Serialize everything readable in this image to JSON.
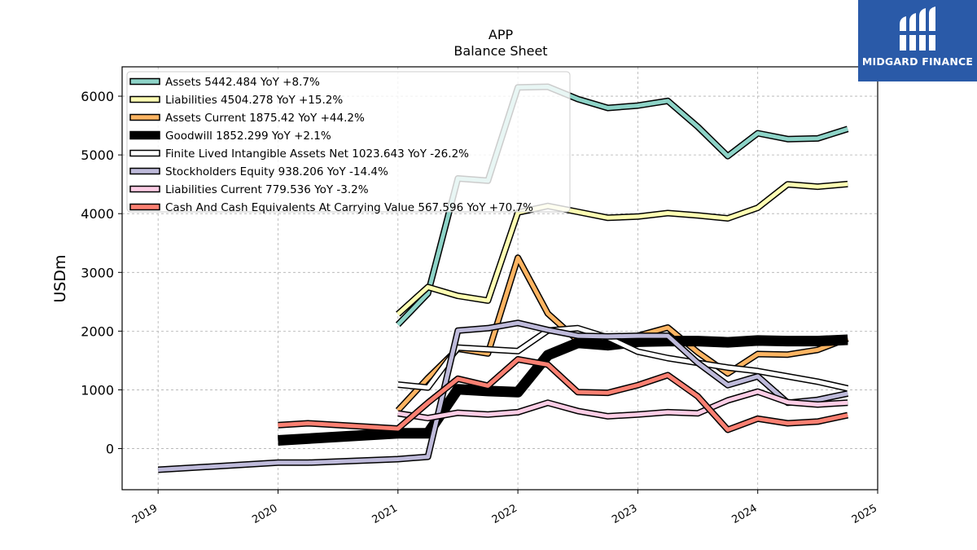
{
  "logo": {
    "text": "MIDGARD FINANCE"
  },
  "chart_data": {
    "type": "line",
    "title": "APP",
    "subtitle": "Balance  Sheet",
    "ylabel": "USDm",
    "xlabel": "",
    "xlim": [
      2018.7,
      2025.0
    ],
    "ylim": [
      -700,
      6500
    ],
    "x_ticks": [
      2019,
      2020,
      2021,
      2022,
      2023,
      2024,
      2025
    ],
    "x_tick_labels": [
      "2019",
      "2020",
      "2021",
      "2022",
      "2023",
      "2024",
      "2025"
    ],
    "y_ticks": [
      0,
      1000,
      2000,
      3000,
      4000,
      5000,
      6000
    ],
    "y_tick_labels": [
      "0",
      "1000",
      "2000",
      "3000",
      "4000",
      "5000",
      "6000"
    ],
    "grid": true,
    "legend_position": "top-left",
    "series": [
      {
        "name": "Assets  5442.484 YoY +8.7%",
        "color": "#8dd3c7",
        "width": 5,
        "points": [
          [
            2021.0,
            2110
          ],
          [
            2021.25,
            2640
          ],
          [
            2021.5,
            4600
          ],
          [
            2021.75,
            4560
          ],
          [
            2022.0,
            6150
          ],
          [
            2022.25,
            6160
          ],
          [
            2022.5,
            5950
          ],
          [
            2022.75,
            5800
          ],
          [
            2023.0,
            5840
          ],
          [
            2023.25,
            5920
          ],
          [
            2023.5,
            5480
          ],
          [
            2023.75,
            4980
          ],
          [
            2024.0,
            5370
          ],
          [
            2024.25,
            5270
          ],
          [
            2024.5,
            5280
          ],
          [
            2024.75,
            5442
          ]
        ]
      },
      {
        "name": "Liabilities  4504.278 YoY +15.2%",
        "color": "#ffffb3",
        "width": 5,
        "points": [
          [
            2021.0,
            2290
          ],
          [
            2021.25,
            2750
          ],
          [
            2021.5,
            2600
          ],
          [
            2021.75,
            2520
          ],
          [
            2022.0,
            4020
          ],
          [
            2022.25,
            4130
          ],
          [
            2022.5,
            4030
          ],
          [
            2022.75,
            3930
          ],
          [
            2023.0,
            3950
          ],
          [
            2023.25,
            4010
          ],
          [
            2023.5,
            3970
          ],
          [
            2023.75,
            3920
          ],
          [
            2024.0,
            4100
          ],
          [
            2024.25,
            4500
          ],
          [
            2024.5,
            4460
          ],
          [
            2024.75,
            4504
          ]
        ]
      },
      {
        "name": "Assets Current  1875.42 YoY +44.2%",
        "color": "#fdb462",
        "width": 5,
        "points": [
          [
            2021.0,
            650
          ],
          [
            2021.25,
            1200
          ],
          [
            2021.5,
            1700
          ],
          [
            2021.75,
            1620
          ],
          [
            2022.0,
            3250
          ],
          [
            2022.25,
            2300
          ],
          [
            2022.5,
            1840
          ],
          [
            2022.75,
            1750
          ],
          [
            2023.0,
            1920
          ],
          [
            2023.25,
            2060
          ],
          [
            2023.5,
            1640
          ],
          [
            2023.75,
            1280
          ],
          [
            2024.0,
            1610
          ],
          [
            2024.25,
            1600
          ],
          [
            2024.5,
            1680
          ],
          [
            2024.75,
            1875
          ]
        ]
      },
      {
        "name": "Goodwill  1852.299 YoY +2.1%",
        "color": "#000000",
        "width": 10,
        "points": [
          [
            2020.0,
            140
          ],
          [
            2021.0,
            260
          ],
          [
            2021.25,
            260
          ],
          [
            2021.5,
            1010
          ],
          [
            2021.75,
            980
          ],
          [
            2022.0,
            960
          ],
          [
            2022.25,
            1590
          ],
          [
            2022.5,
            1800
          ],
          [
            2022.75,
            1760
          ],
          [
            2023.0,
            1820
          ],
          [
            2023.25,
            1830
          ],
          [
            2023.5,
            1830
          ],
          [
            2023.75,
            1810
          ],
          [
            2024.0,
            1840
          ],
          [
            2024.25,
            1830
          ],
          [
            2024.5,
            1830
          ],
          [
            2024.75,
            1852
          ]
        ]
      },
      {
        "name": "Finite Lived Intangible Assets Net  1023.643 YoY -26.2%",
        "color": "#ffffff",
        "width": 5,
        "points": [
          [
            2021.0,
            1090
          ],
          [
            2021.25,
            1040
          ],
          [
            2021.5,
            1720
          ],
          [
            2021.75,
            1690
          ],
          [
            2022.0,
            1660
          ],
          [
            2022.25,
            2010
          ],
          [
            2022.5,
            2050
          ],
          [
            2022.75,
            1890
          ],
          [
            2023.0,
            1650
          ],
          [
            2023.25,
            1540
          ],
          [
            2023.5,
            1460
          ],
          [
            2023.75,
            1380
          ],
          [
            2024.0,
            1320
          ],
          [
            2024.25,
            1230
          ],
          [
            2024.5,
            1140
          ],
          [
            2024.75,
            1024
          ]
        ]
      },
      {
        "name": "Stockholders Equity  938.206 YoY -14.4%",
        "color": "#bebada",
        "width": 5,
        "points": [
          [
            2019.0,
            -360
          ],
          [
            2020.0,
            -240
          ],
          [
            2020.25,
            -240
          ],
          [
            2021.0,
            -180
          ],
          [
            2021.25,
            -140
          ],
          [
            2021.5,
            2010
          ],
          [
            2021.75,
            2050
          ],
          [
            2022.0,
            2140
          ],
          [
            2022.25,
            2020
          ],
          [
            2022.5,
            1920
          ],
          [
            2022.75,
            1910
          ],
          [
            2023.0,
            1920
          ],
          [
            2023.25,
            1920
          ],
          [
            2023.5,
            1460
          ],
          [
            2023.75,
            1080
          ],
          [
            2024.0,
            1230
          ],
          [
            2024.25,
            780
          ],
          [
            2024.5,
            830
          ],
          [
            2024.75,
            938
          ]
        ]
      },
      {
        "name": "Liabilities Current  779.536 YoY -3.2%",
        "color": "#fccde5",
        "width": 5,
        "points": [
          [
            2021.0,
            600
          ],
          [
            2021.25,
            520
          ],
          [
            2021.5,
            610
          ],
          [
            2021.75,
            580
          ],
          [
            2022.0,
            620
          ],
          [
            2022.25,
            780
          ],
          [
            2022.5,
            640
          ],
          [
            2022.75,
            550
          ],
          [
            2023.0,
            580
          ],
          [
            2023.25,
            620
          ],
          [
            2023.5,
            600
          ],
          [
            2023.75,
            820
          ],
          [
            2024.0,
            970
          ],
          [
            2024.25,
            790
          ],
          [
            2024.5,
            750
          ],
          [
            2024.75,
            780
          ]
        ]
      },
      {
        "name": "Cash And Cash Equivalents At Carrying Value  567.596 YoY +70.7%",
        "color": "#fb8072",
        "width": 5,
        "points": [
          [
            2020.0,
            400
          ],
          [
            2020.25,
            430
          ],
          [
            2021.0,
            340
          ],
          [
            2021.25,
            780
          ],
          [
            2021.5,
            1190
          ],
          [
            2021.75,
            1070
          ],
          [
            2022.0,
            1520
          ],
          [
            2022.25,
            1430
          ],
          [
            2022.5,
            960
          ],
          [
            2022.75,
            950
          ],
          [
            2023.0,
            1080
          ],
          [
            2023.25,
            1250
          ],
          [
            2023.5,
            890
          ],
          [
            2023.75,
            320
          ],
          [
            2024.0,
            510
          ],
          [
            2024.25,
            430
          ],
          [
            2024.5,
            460
          ],
          [
            2024.75,
            568
          ]
        ]
      }
    ]
  }
}
